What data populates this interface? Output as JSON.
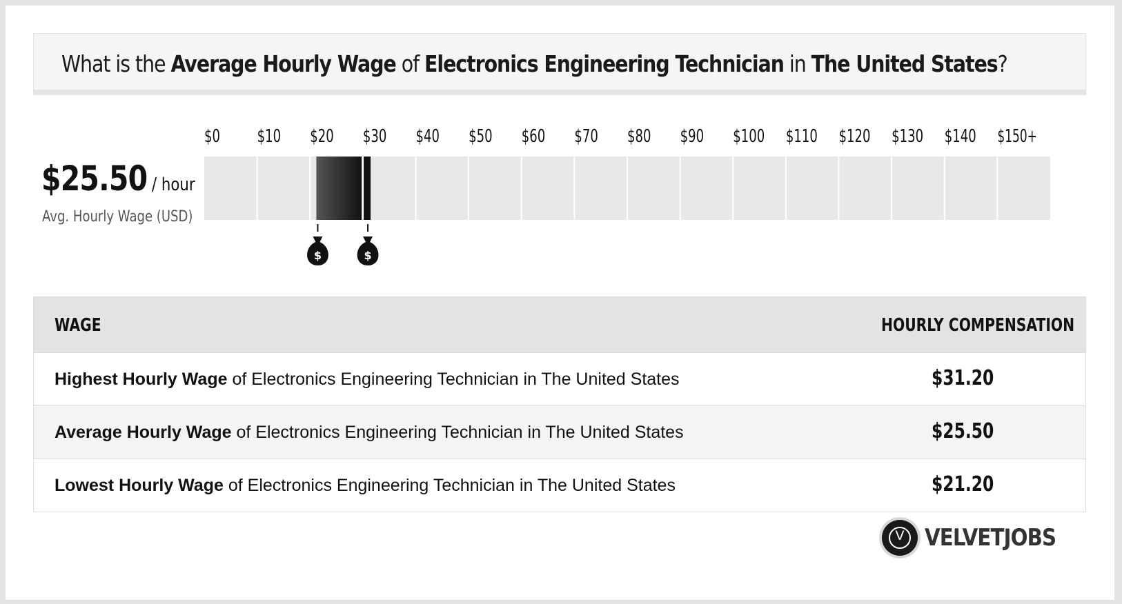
{
  "title": {
    "prefix": "What is the ",
    "metric": "Average Hourly Wage",
    "of": " of ",
    "job": "Electronics Engineering Technician",
    "in": " in ",
    "location": "The United States",
    "suffix": "?"
  },
  "headline": {
    "amount": "$25.50",
    "unit": "/ hour",
    "caption": "Avg. Hourly Wage (USD)"
  },
  "chart_data": {
    "type": "range",
    "tick_labels": [
      "$0",
      "$10",
      "$20",
      "$30",
      "$40",
      "$50",
      "$60",
      "$70",
      "$80",
      "$90",
      "$100",
      "$110",
      "$120",
      "$130",
      "$140",
      "$150+"
    ],
    "xlim": [
      0,
      160
    ],
    "range": {
      "low": 21.2,
      "average": 25.5,
      "high": 31.2
    },
    "markers": [
      {
        "value": 21.2,
        "icon": "money-bag-icon",
        "glyph": "$"
      },
      {
        "value": 31.2,
        "icon": "money-bag-icon",
        "glyph": "$"
      }
    ],
    "colors": {
      "track": "#e8e8e8",
      "range_start": "#555555",
      "range_end": "#111111",
      "high_marker": "#111111"
    }
  },
  "table": {
    "headers": [
      "WAGE",
      "HOURLY COMPENSATION"
    ],
    "rows": [
      {
        "label_bold": "Highest Hourly Wage",
        "label_rest": " of Electronics Engineering Technician in The United States",
        "value": "$31.20"
      },
      {
        "label_bold": "Average Hourly Wage",
        "label_rest": " of Electronics Engineering Technician in The United States",
        "value": "$25.50"
      },
      {
        "label_bold": "Lowest Hourly Wage",
        "label_rest": " of Electronics Engineering Technician in The United States",
        "value": "$21.20"
      }
    ]
  },
  "brand": {
    "logo_letter": "V",
    "name": "VELVETJOBS"
  }
}
